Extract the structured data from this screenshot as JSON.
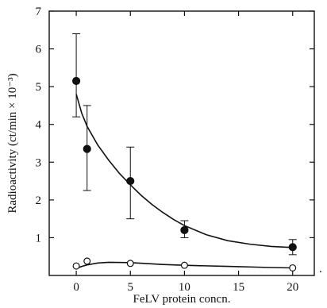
{
  "chart_data": {
    "type": "scatter",
    "xlabel": "FeLV protein concn.",
    "ylabel": "Radioactivity (ct/min × 10⁻³)",
    "xlim": [
      -2.5,
      22
    ],
    "ylim": [
      0,
      7
    ],
    "x_ticks": [
      0,
      5,
      10,
      15,
      20
    ],
    "x_tick_labels": [
      "0",
      "5",
      "10",
      "15",
      "20"
    ],
    "y_ticks": [
      1,
      2,
      3,
      4,
      5,
      6,
      7
    ],
    "y_tick_labels": [
      "1",
      "2",
      "3",
      "4",
      "5",
      "6",
      "7"
    ],
    "trailing_mark": ".",
    "series": [
      {
        "marker": "filled-circle",
        "x": [
          0,
          1,
          5,
          10,
          20
        ],
        "y": [
          5.15,
          3.35,
          2.5,
          1.2,
          0.75
        ],
        "err_low": [
          4.2,
          2.25,
          1.5,
          1.0,
          0.55
        ],
        "err_high": [
          6.4,
          4.5,
          3.4,
          1.45,
          0.95
        ],
        "curve": [
          [
            0,
            4.8
          ],
          [
            0.5,
            4.3
          ],
          [
            1,
            3.95
          ],
          [
            2,
            3.45
          ],
          [
            3,
            3.05
          ],
          [
            4,
            2.7
          ],
          [
            5,
            2.4
          ],
          [
            6,
            2.12
          ],
          [
            7,
            1.88
          ],
          [
            8,
            1.67
          ],
          [
            9,
            1.48
          ],
          [
            10,
            1.32
          ],
          [
            12,
            1.08
          ],
          [
            14,
            0.92
          ],
          [
            16,
            0.83
          ],
          [
            18,
            0.77
          ],
          [
            20,
            0.74
          ]
        ]
      },
      {
        "marker": "open-circle",
        "x": [
          0,
          1,
          5,
          10,
          20
        ],
        "y": [
          0.25,
          0.38,
          0.32,
          0.27,
          0.2
        ],
        "curve": [
          [
            0,
            0.18
          ],
          [
            0.5,
            0.24
          ],
          [
            1,
            0.28
          ],
          [
            2,
            0.33
          ],
          [
            3,
            0.35
          ],
          [
            5,
            0.34
          ],
          [
            8,
            0.29
          ],
          [
            10,
            0.27
          ],
          [
            14,
            0.24
          ],
          [
            18,
            0.21
          ],
          [
            20,
            0.2
          ]
        ]
      }
    ]
  }
}
